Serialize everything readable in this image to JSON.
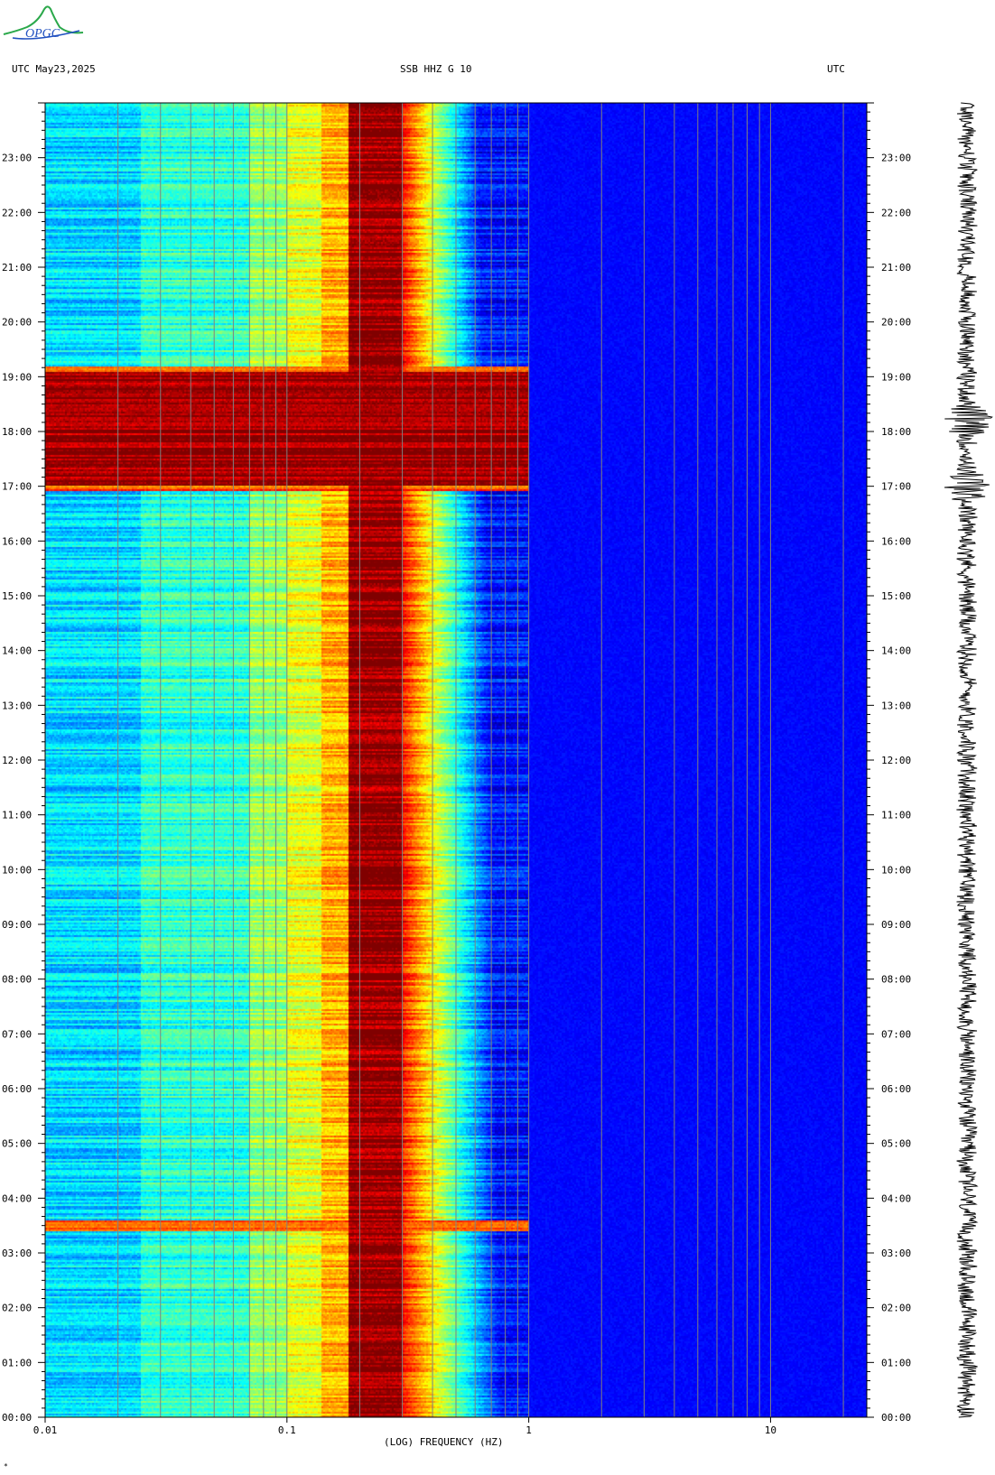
{
  "header": {
    "left_label": "UTC  May23,2025",
    "center_label": "SSB HHZ G 10",
    "right_label": "UTC"
  },
  "logo": {
    "text": "OPGC"
  },
  "footnote": "*",
  "colors": {
    "background": "#ffffff",
    "low_power": "#0a1a9a",
    "mid_power": "#20d8ff",
    "high_power": "#ffe01a",
    "max_power": "#8b0000",
    "grid": "#808080",
    "logo_green": "#2aa84a",
    "logo_blue": "#2050c0"
  },
  "chart_data": {
    "type": "heatmap",
    "title": "SSB HHZ G 10",
    "xlabel": "(LOG) FREQUENCY (HZ)",
    "ylabel": "",
    "x_scale": "log",
    "xlim": [
      0.01,
      25
    ],
    "x_ticks": [
      {
        "value": 0.01,
        "label": "0.01"
      },
      {
        "value": 0.1,
        "label": "0.1"
      },
      {
        "value": 1,
        "label": "1"
      },
      {
        "value": 10,
        "label": "10"
      }
    ],
    "ylim_hours": [
      0,
      24
    ],
    "y_ticks": [
      "00:00",
      "01:00",
      "02:00",
      "03:00",
      "04:00",
      "05:00",
      "06:00",
      "07:00",
      "08:00",
      "09:00",
      "10:00",
      "11:00",
      "12:00",
      "13:00",
      "14:00",
      "15:00",
      "16:00",
      "17:00",
      "18:00",
      "19:00",
      "20:00",
      "21:00",
      "22:00",
      "23:00"
    ],
    "grid_frequencies": [
      0.02,
      0.03,
      0.04,
      0.05,
      0.06,
      0.07,
      0.08,
      0.09,
      0.1,
      0.2,
      0.3,
      0.4,
      0.5,
      0.6,
      0.7,
      0.8,
      0.9,
      1,
      2,
      3,
      4,
      5,
      6,
      7,
      8,
      9,
      10,
      20
    ],
    "microseism_band_hz": [
      0.18,
      0.3
    ],
    "events": [
      {
        "start_hour": 16.9,
        "end_hour": 19.2,
        "label": ""
      },
      {
        "start_hour": 3.4,
        "end_hour": 3.6,
        "label": ""
      }
    ]
  },
  "seismogram": {
    "burst_hours": [
      17.0,
      18.2
    ]
  }
}
